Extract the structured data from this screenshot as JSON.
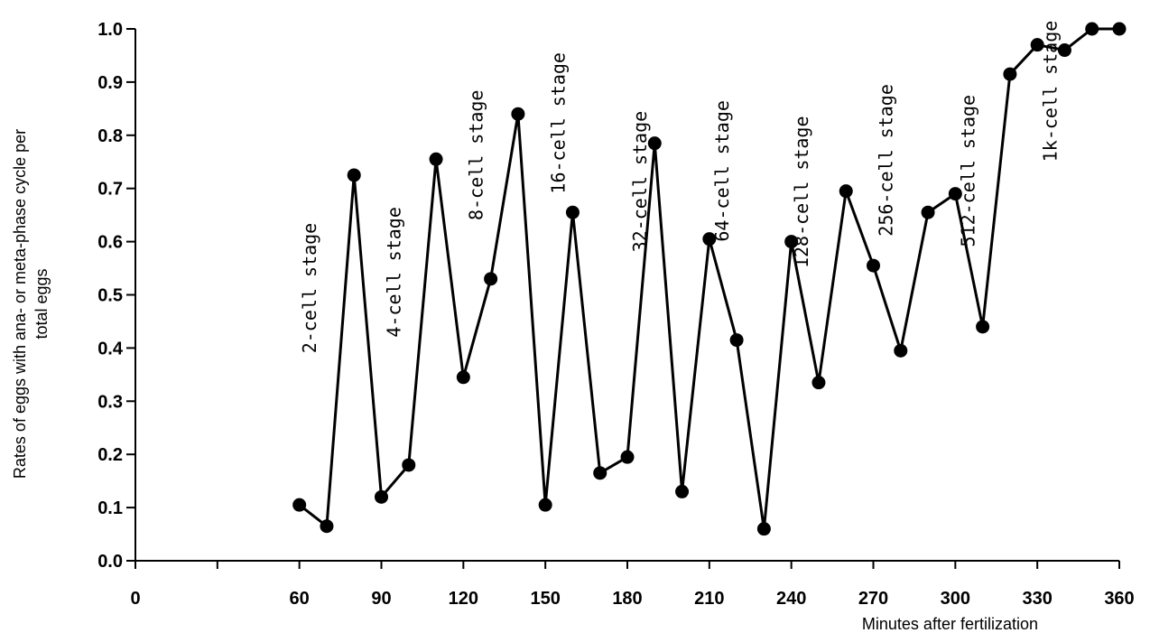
{
  "chart_data": {
    "type": "line",
    "title": "",
    "xlabel": "Minutes after fertilization",
    "ylabel": "Rates of eggs with ana- or meta-phase cycle per total eggs",
    "ylabel_lines": [
      "Rates of eggs with ana- or meta-phase cycle per",
      "total eggs"
    ],
    "xlim": [
      0,
      360
    ],
    "ylim": [
      0,
      1.0
    ],
    "x_ticks": [
      0,
      60,
      90,
      120,
      150,
      180,
      210,
      240,
      270,
      300,
      330,
      360
    ],
    "x_tick_labels": [
      "0",
      "60",
      "90",
      "120",
      "150",
      "180",
      "210",
      "240",
      "270",
      "300",
      "330",
      "360"
    ],
    "y_ticks": [
      0,
      0.1,
      0.2,
      0.3,
      0.4,
      0.5,
      0.6,
      0.7,
      0.8,
      0.9,
      1.0
    ],
    "y_tick_labels": [
      "0.0",
      "0.1",
      "0.2",
      "0.3",
      "0.4",
      "0.5",
      "0.6",
      "0.7",
      "0.8",
      "0.9",
      "1.0"
    ],
    "grid": false,
    "legend": "none",
    "color": "#000000",
    "series": [
      {
        "x": [
          60,
          70,
          80,
          90,
          100,
          110,
          120,
          130,
          140,
          150,
          160,
          170,
          180,
          190,
          200,
          210,
          220,
          230,
          240,
          250,
          260,
          270,
          280,
          290,
          300,
          310,
          320,
          330,
          340,
          350,
          360
        ],
        "y": [
          0.105,
          0.065,
          0.725,
          0.12,
          0.18,
          0.755,
          0.345,
          0.53,
          0.84,
          0.105,
          0.655,
          0.165,
          0.195,
          0.785,
          0.13,
          0.605,
          0.415,
          0.06,
          0.6,
          0.335,
          0.695,
          0.555,
          0.395,
          0.655,
          0.69,
          0.44,
          0.915,
          0.97,
          0.96,
          1.0,
          1.0
        ]
      }
    ],
    "annotations": [
      {
        "text": "2-cell stage",
        "x": 66,
        "y": 0.39
      },
      {
        "text": "4-cell stage",
        "x": 97,
        "y": 0.42
      },
      {
        "text": "8-cell stage",
        "x": 127,
        "y": 0.64
      },
      {
        "text": "16-cell stage",
        "x": 157,
        "y": 0.69
      },
      {
        "text": "32-cell stage",
        "x": 187,
        "y": 0.58
      },
      {
        "text": "64-cell stage",
        "x": 217,
        "y": 0.6
      },
      {
        "text": "128-cell stage",
        "x": 246,
        "y": 0.55
      },
      {
        "text": "256-cell stage",
        "x": 277,
        "y": 0.61
      },
      {
        "text": "512-cell stage",
        "x": 307,
        "y": 0.59
      },
      {
        "text": "1k-cell stage",
        "x": 337,
        "y": 0.75
      }
    ]
  }
}
